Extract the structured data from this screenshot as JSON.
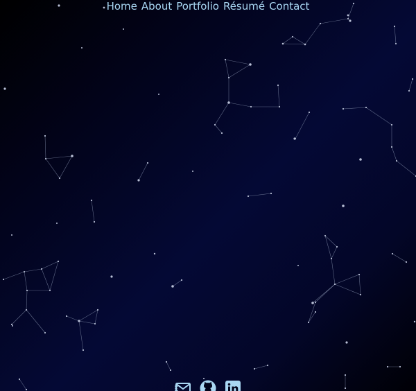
{
  "nav": {
    "items": [
      {
        "key": "home",
        "label": "Home"
      },
      {
        "key": "about",
        "label": "About"
      },
      {
        "key": "portfolio",
        "label": "Portfolio"
      },
      {
        "key": "resume",
        "label": "Résumé"
      },
      {
        "key": "contact",
        "label": "Contact"
      }
    ]
  },
  "colors": {
    "nav_text": "#a9d7f3",
    "icon": "#a9d7f3",
    "star": "#b9c0d6",
    "background_mid": "#040935",
    "background_dark": "#000000"
  },
  "social": {
    "icons": [
      "mail-icon",
      "github-icon",
      "linkedin-icon"
    ]
  }
}
